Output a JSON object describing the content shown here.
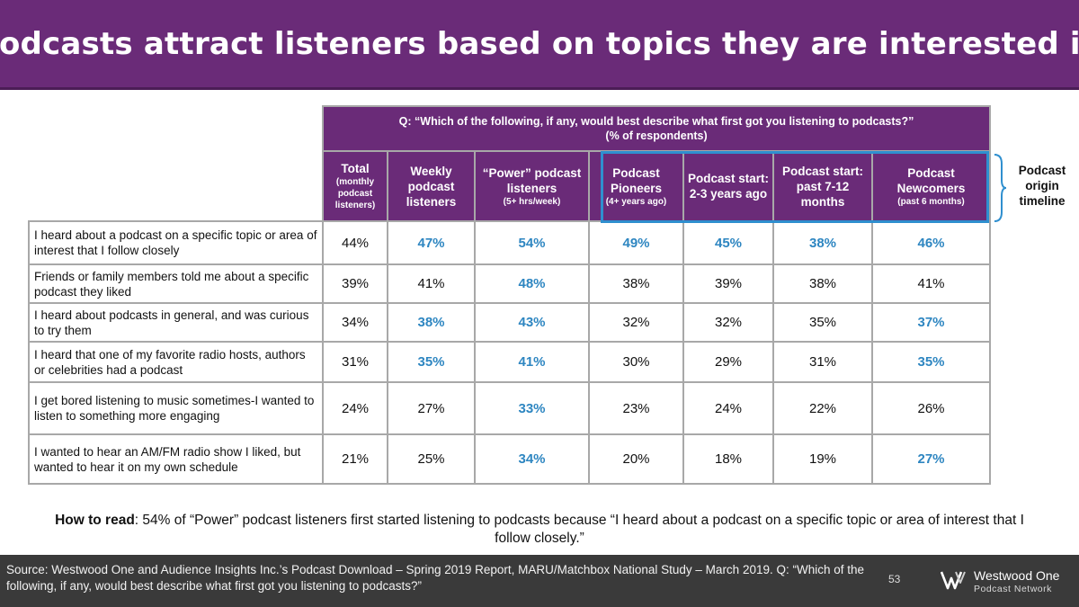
{
  "title": "Podcasts attract listeners based on topics they are interested in",
  "question": {
    "line1": "Q: “Which of the following, if any, would best describe what first got you listening to podcasts?”",
    "line2": "(% of respondents)"
  },
  "columns": [
    {
      "main": "Total",
      "sub": "(monthly podcast listeners)"
    },
    {
      "main": "Weekly podcast listeners",
      "sub": ""
    },
    {
      "main": "“Power” podcast listeners",
      "sub": "(5+ hrs/week)"
    },
    {
      "main": "Podcast Pioneers",
      "sub": "(4+ years ago)"
    },
    {
      "main": "Podcast start: 2-3 years ago",
      "sub": ""
    },
    {
      "main": "Podcast start: past 7-12 months",
      "sub": ""
    },
    {
      "main": "Podcast Newcomers",
      "sub": "(past 6 months)"
    }
  ],
  "rows": [
    {
      "label": "I heard about a podcast on a specific topic or area of interest that I follow closely",
      "values": [
        "44%",
        "47%",
        "54%",
        "49%",
        "45%",
        "38%",
        "46%"
      ]
    },
    {
      "label": "Friends or family members told me about a specific podcast they liked",
      "values": [
        "39%",
        "41%",
        "48%",
        "38%",
        "39%",
        "38%",
        "41%"
      ]
    },
    {
      "label": "I heard about podcasts in general, and was curious to try them",
      "values": [
        "34%",
        "38%",
        "43%",
        "32%",
        "32%",
        "35%",
        "37%"
      ]
    },
    {
      "label": "I heard that one of my favorite radio hosts, authors or celebrities had a podcast",
      "values": [
        "31%",
        "35%",
        "41%",
        "30%",
        "29%",
        "31%",
        "35%"
      ]
    },
    {
      "label": "I get bored listening to music sometimes-I wanted to listen to something more engaging",
      "values": [
        "24%",
        "27%",
        "33%",
        "23%",
        "24%",
        "22%",
        "26%"
      ]
    },
    {
      "label": "I wanted to hear an AM/FM radio show I liked, but wanted to hear it on my own schedule",
      "values": [
        "21%",
        "25%",
        "34%",
        "20%",
        "18%",
        "19%",
        "27%"
      ]
    }
  ],
  "highlight": [
    [
      false,
      true,
      true,
      true,
      true,
      true,
      true
    ],
    [
      false,
      false,
      true,
      false,
      false,
      false,
      false
    ],
    [
      false,
      true,
      true,
      false,
      false,
      false,
      true
    ],
    [
      false,
      true,
      true,
      false,
      false,
      false,
      true
    ],
    [
      false,
      false,
      true,
      false,
      false,
      false,
      false
    ],
    [
      false,
      false,
      true,
      false,
      false,
      false,
      true
    ]
  ],
  "timeline_label": "Podcast origin timeline",
  "how_to": {
    "label": "How to read",
    "text": ": 54% of “Power” podcast listeners first started listening to podcasts because “I heard about a podcast on a specific topic or area of interest that I follow closely.”"
  },
  "footer": {
    "source": "Source: Westwood One and Audience Insights Inc.’s Podcast Download – Spring 2019 Report, MARU/Matchbox National Study – March 2019. Q: “Which of the following, if any, would best describe what first got you listening to podcasts?”",
    "page_number": "53",
    "logo_name": "Westwood One",
    "logo_sub": "Podcast Network"
  },
  "colors": {
    "purple": "#6a2b78",
    "highlight_blue": "#2e86c1",
    "timeline_box": "#2f8fcf",
    "footer_bg": "#3a3a3a"
  }
}
